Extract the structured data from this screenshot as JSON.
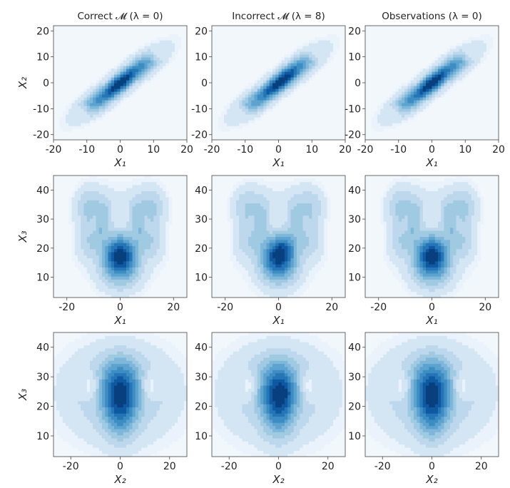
{
  "figure": {
    "column_titles": [
      "Correct 𝓜 (λ = 0)",
      "Incorrect 𝓜 (λ = 8)",
      "Observations (λ = 0)"
    ],
    "colormap": [
      "#eaf3fb",
      "#d4e5f4",
      "#bdd7ec",
      "#9fcae1",
      "#7fb7da",
      "#5ca3d0",
      "#3d8dc3",
      "#2575b7",
      "#0e59a2",
      "#08407e"
    ]
  },
  "chart_data": [
    {
      "type": "heatmap",
      "subtype": "kde-contour",
      "row": 0,
      "col": 0,
      "title": "Correct 𝓜 (λ = 0)",
      "xlabel": "X₁",
      "ylabel": "X₂",
      "xlim": [
        -20,
        20
      ],
      "ylim": [
        -22,
        22
      ],
      "xticks": [
        -20,
        -10,
        0,
        10,
        20
      ],
      "yticks": [
        -20,
        -10,
        0,
        10,
        20
      ],
      "grid": false
    },
    {
      "type": "heatmap",
      "subtype": "kde-contour",
      "row": 0,
      "col": 1,
      "title": "Incorrect 𝓜 (λ = 8)",
      "xlabel": "X₁",
      "ylabel": "",
      "xlim": [
        -20,
        20
      ],
      "ylim": [
        -22,
        22
      ],
      "xticks": [
        -20,
        -10,
        0,
        10,
        20
      ],
      "yticks": [
        -20,
        -10,
        0,
        10,
        20
      ],
      "grid": false
    },
    {
      "type": "heatmap",
      "subtype": "kde-contour",
      "row": 0,
      "col": 2,
      "title": "Observations (λ = 0)",
      "xlabel": "X₁",
      "ylabel": "",
      "xlim": [
        -20,
        20
      ],
      "ylim": [
        -22,
        22
      ],
      "xticks": [
        -20,
        -10,
        0,
        10,
        20
      ],
      "yticks": [
        -20,
        -10,
        0,
        10,
        20
      ],
      "grid": false
    },
    {
      "type": "heatmap",
      "subtype": "kde-contour",
      "row": 1,
      "col": 0,
      "title": "",
      "xlabel": "X₁",
      "ylabel": "X₃",
      "xlim": [
        -25,
        25
      ],
      "ylim": [
        3,
        45
      ],
      "xticks": [
        -20,
        0,
        20
      ],
      "yticks": [
        10,
        20,
        30,
        40
      ],
      "grid": false
    },
    {
      "type": "heatmap",
      "subtype": "kde-contour",
      "row": 1,
      "col": 1,
      "title": "",
      "xlabel": "X₁",
      "ylabel": "",
      "xlim": [
        -25,
        25
      ],
      "ylim": [
        3,
        45
      ],
      "xticks": [
        -20,
        0,
        20
      ],
      "yticks": [
        10,
        20,
        30,
        40
      ],
      "grid": false
    },
    {
      "type": "heatmap",
      "subtype": "kde-contour",
      "row": 1,
      "col": 2,
      "title": "",
      "xlabel": "X₁",
      "ylabel": "",
      "xlim": [
        -25,
        25
      ],
      "ylim": [
        3,
        45
      ],
      "xticks": [
        -20,
        0,
        20
      ],
      "yticks": [
        10,
        20,
        30,
        40
      ],
      "grid": false
    },
    {
      "type": "heatmap",
      "subtype": "kde-contour",
      "row": 2,
      "col": 0,
      "title": "",
      "xlabel": "X₂",
      "ylabel": "X₃",
      "xlim": [
        -27,
        27
      ],
      "ylim": [
        3,
        45
      ],
      "xticks": [
        -20,
        0,
        20
      ],
      "yticks": [
        10,
        20,
        30,
        40
      ],
      "grid": false
    },
    {
      "type": "heatmap",
      "subtype": "kde-contour",
      "row": 2,
      "col": 1,
      "title": "",
      "xlabel": "X₂",
      "ylabel": "",
      "xlim": [
        -27,
        27
      ],
      "ylim": [
        3,
        45
      ],
      "xticks": [
        -20,
        0,
        20
      ],
      "yticks": [
        10,
        20,
        30,
        40
      ],
      "grid": false
    },
    {
      "type": "heatmap",
      "subtype": "kde-contour",
      "row": 2,
      "col": 2,
      "title": "",
      "xlabel": "X₂",
      "ylabel": "",
      "xlim": [
        -27,
        27
      ],
      "ylim": [
        3,
        45
      ],
      "xticks": [
        -20,
        0,
        20
      ],
      "yticks": [
        10,
        20,
        30,
        40
      ],
      "grid": false
    }
  ]
}
